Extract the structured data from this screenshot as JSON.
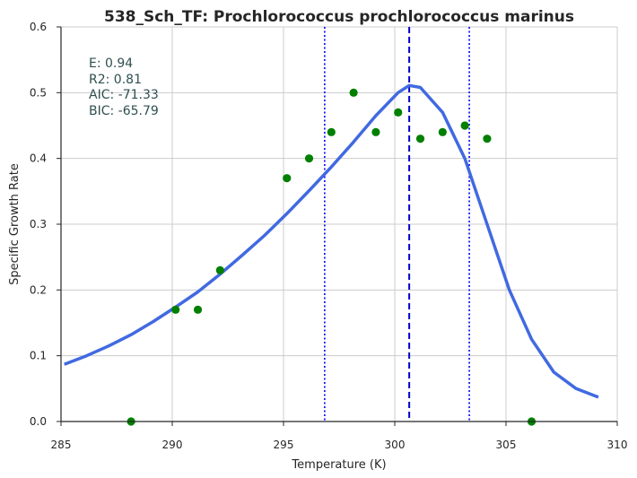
{
  "chart_data": {
    "type": "scatter",
    "title": "538_Sch_TF: Prochlorococcus prochlorococcus marinus",
    "xlabel": "Temperature (K)",
    "ylabel": "Specific Growth Rate",
    "xlim": [
      285,
      310
    ],
    "ylim": [
      0.0,
      0.6
    ],
    "xticks": [
      285,
      290,
      295,
      300,
      305,
      310
    ],
    "xtick_labels": [
      "285",
      "290",
      "295",
      "300",
      "305",
      "310"
    ],
    "yticks": [
      0.0,
      0.1,
      0.2,
      0.3,
      0.4,
      0.5,
      0.6
    ],
    "ytick_labels": [
      "0.0",
      "0.1",
      "0.2",
      "0.3",
      "0.4",
      "0.5",
      "0.6"
    ],
    "grid": true,
    "series": [
      {
        "kind": "points",
        "color": "#008000",
        "x": [
          288.15,
          290.15,
          291.15,
          292.15,
          295.15,
          296.15,
          297.15,
          298.15,
          299.15,
          300.15,
          301.15,
          302.15,
          303.15,
          304.15,
          306.15
        ],
        "y": [
          0.0,
          0.17,
          0.17,
          0.23,
          0.37,
          0.4,
          0.44,
          0.5,
          0.44,
          0.47,
          0.43,
          0.44,
          0.45,
          0.43,
          0.0
        ]
      },
      {
        "kind": "fit-curve",
        "color": "#4169e1",
        "x": [
          285.15,
          286.15,
          287.15,
          288.15,
          289.15,
          290.15,
          291.15,
          292.15,
          293.15,
          294.15,
          295.15,
          296.15,
          297.15,
          298.15,
          299.15,
          300.15,
          300.65,
          301.15,
          302.15,
          303.15,
          304.15,
          305.15,
          306.15,
          307.15,
          308.15,
          309.15
        ],
        "y": [
          0.087,
          0.1,
          0.115,
          0.132,
          0.152,
          0.174,
          0.197,
          0.224,
          0.253,
          0.283,
          0.316,
          0.351,
          0.387,
          0.425,
          0.465,
          0.5,
          0.511,
          0.508,
          0.47,
          0.4,
          0.3,
          0.2,
          0.125,
          0.075,
          0.05,
          0.037
        ]
      }
    ],
    "vlines": [
      {
        "x": 300.65,
        "style": "dashed",
        "color": "#0000cd"
      },
      {
        "x": 296.85,
        "style": "dotted",
        "color": "#0000ff"
      },
      {
        "x": 303.35,
        "style": "dotted",
        "color": "#0000ff"
      }
    ],
    "annotations": [
      "E:  0.94",
      "R2:  0.81",
      "AIC: -71.33",
      "BIC: -65.79"
    ]
  }
}
